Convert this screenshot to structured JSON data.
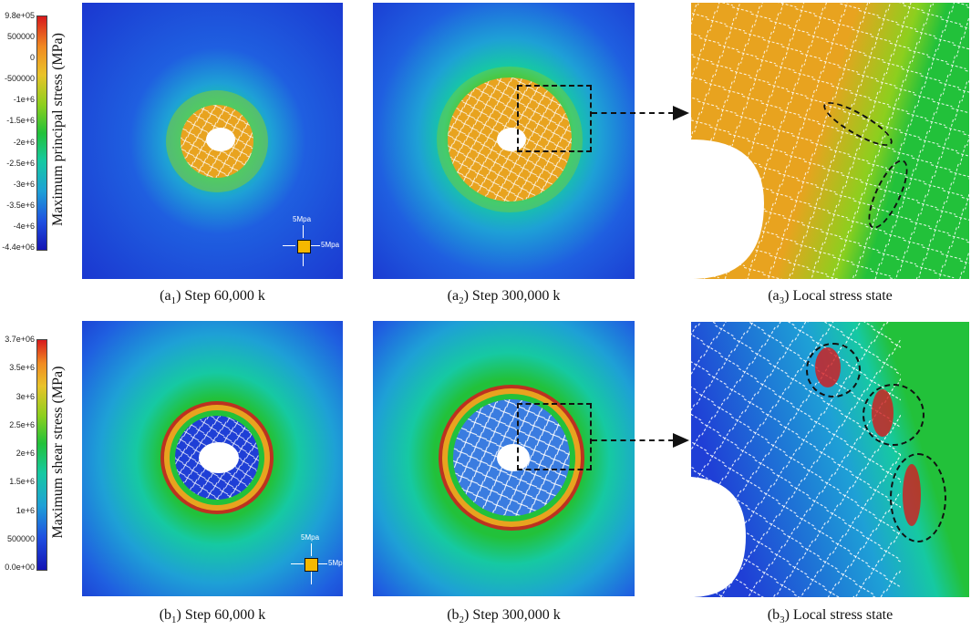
{
  "colorbar_principal": {
    "title": "Maximum principal stress (MPa)",
    "ticks": [
      "9.8e+05",
      "500000",
      "0",
      "-500000",
      "-1e+6",
      "-1.5e+6",
      "-2e+6",
      "-2.5e+6",
      "-3e+6",
      "-3.5e+6",
      "-4e+6",
      "-4.4e+06"
    ],
    "range": [
      -4400000,
      980000
    ]
  },
  "colorbar_shear": {
    "title": "Maximum shear stress (MPa)",
    "ticks": [
      "3.7e+06",
      "3.5e+6",
      "3e+6",
      "2.5e+6",
      "2e+6",
      "1.5e+6",
      "1e+6",
      "500000",
      "0.0e+00"
    ],
    "range": [
      0,
      3700000
    ]
  },
  "load": {
    "vertical_label": "5Mpa",
    "horizontal_label": "5Mpa",
    "box_color": "#f5b800"
  },
  "panels": {
    "a1": {
      "prefix": "(a",
      "sub": "1",
      "suffix": ") Step 60,000 k"
    },
    "a2": {
      "prefix": "(a",
      "sub": "2",
      "suffix": ") Step 300,000 k"
    },
    "a3": {
      "prefix": "(a",
      "sub": "3",
      "suffix": ") Local stress state"
    },
    "b1": {
      "prefix": "(b",
      "sub": "1",
      "suffix": ") Step 60,000 k"
    },
    "b2": {
      "prefix": "(b",
      "sub": "2",
      "suffix": ") Step 300,000 k"
    },
    "b3": {
      "prefix": "(b",
      "sub": "3",
      "suffix": ") Local stress state"
    }
  },
  "colors": {
    "blue_field": "#1f3fd6",
    "green": "#22c13a",
    "orange": "#e8a31f",
    "red": "#d7191c"
  }
}
